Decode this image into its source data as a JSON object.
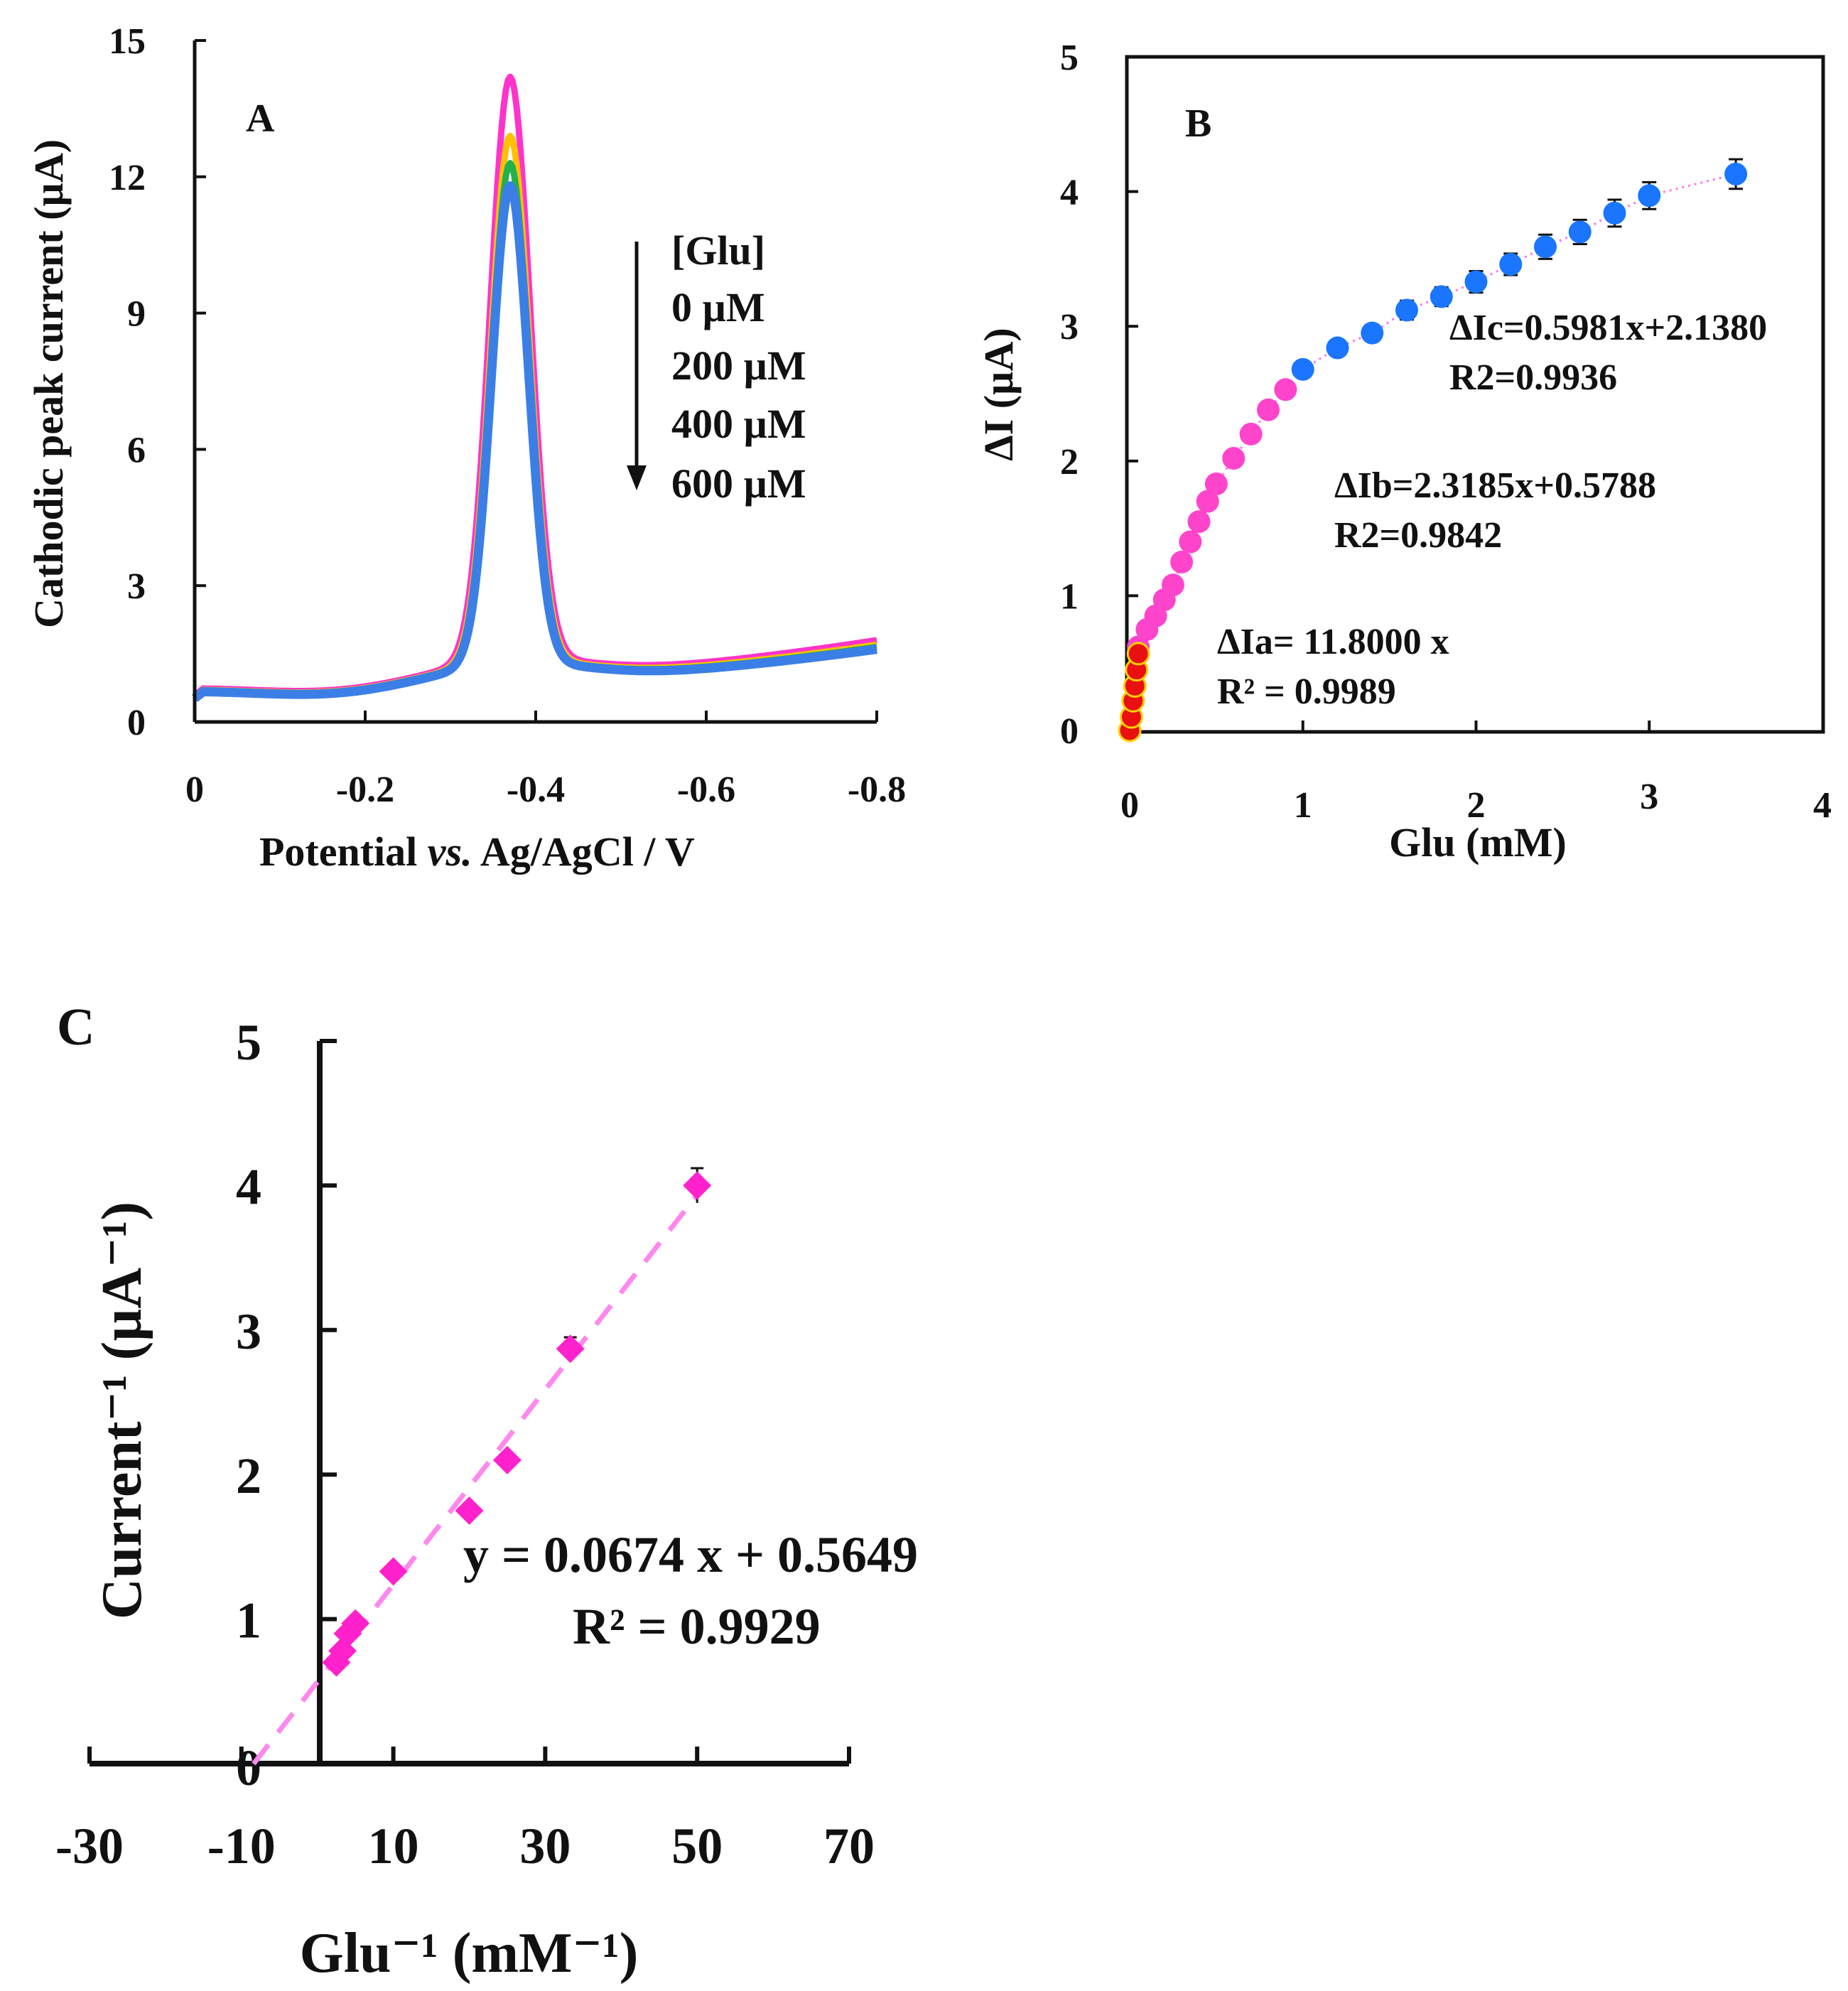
{
  "chart_data": [
    {
      "panel": "A",
      "type": "line",
      "title": "",
      "panel_label": "A",
      "xlabel": "Potential vs. Ag/AgCl / V",
      "xlabel_parts": [
        "Potential ",
        "vs.",
        " Ag/AgCl / V"
      ],
      "ylabel": "Cathodic peak current  (µA)",
      "xlim": [
        0,
        -0.8
      ],
      "ylim": [
        0,
        15
      ],
      "x_ticks": [
        0,
        -0.2,
        -0.4,
        -0.6,
        -0.8
      ],
      "x_tick_labels": [
        "0",
        "-0.2",
        "-0.4",
        "-0.6",
        "-0.8"
      ],
      "y_ticks": [
        0,
        3,
        6,
        9,
        12,
        15
      ],
      "y_tick_labels": [
        "0",
        "3",
        "6",
        "9",
        "12",
        "15"
      ],
      "legend": {
        "title": "[Glu]",
        "entries": [
          "0 µM",
          "200 µM",
          "400 µM",
          "600 µM"
        ],
        "placement": "right of peak, arrow pointing down"
      },
      "series": [
        {
          "name": "0 µM",
          "color": "#ff33cc",
          "peak": 14.2,
          "peak_x": -0.37,
          "width": 0.033,
          "tail_left": 0.75,
          "tail_right": 1.8
        },
        {
          "name": "200 µM",
          "color": "#ffc000",
          "peak": 12.9,
          "peak_x": -0.37,
          "width": 0.032,
          "tail_left": 0.72,
          "tail_right": 1.7
        },
        {
          "name": "400 µM",
          "color": "#22b14c",
          "peak": 12.3,
          "peak_x": -0.37,
          "width": 0.031,
          "tail_left": 0.7,
          "tail_right": 1.65
        },
        {
          "name": "600 µM",
          "color": "#3b7fe6",
          "peak": 11.8,
          "peak_x": -0.37,
          "width": 0.031,
          "tail_left": 0.68,
          "tail_right": 1.6
        }
      ]
    },
    {
      "panel": "B",
      "type": "scatter",
      "panel_label": "B",
      "xlabel": "Glu (mM)",
      "ylabel": "ΔI (µA)",
      "xlim": [
        0,
        4
      ],
      "ylim": [
        0,
        5
      ],
      "x_ticks": [
        0,
        1,
        2,
        3,
        4
      ],
      "x_tick_labels": [
        "0",
        "1",
        "2",
        "3",
        "4"
      ],
      "y_ticks": [
        0,
        1,
        2,
        3,
        4,
        5
      ],
      "y_tick_labels": [
        "0",
        "1",
        "2",
        "3",
        "4",
        "5"
      ],
      "series": [
        {
          "name": "a",
          "color": "#e81010",
          "edge": "#ffd000",
          "x": [
            0.0,
            0.01,
            0.02,
            0.03,
            0.04,
            0.05
          ],
          "y": [
            0.0,
            0.1,
            0.22,
            0.33,
            0.45,
            0.57
          ]
        },
        {
          "name": "b",
          "color": "#ff44cc",
          "x": [
            0.05,
            0.1,
            0.15,
            0.2,
            0.25,
            0.3,
            0.35,
            0.4,
            0.45,
            0.5,
            0.6,
            0.7,
            0.8,
            0.9
          ],
          "y": [
            0.62,
            0.75,
            0.85,
            0.97,
            1.08,
            1.25,
            1.4,
            1.55,
            1.7,
            1.83,
            2.02,
            2.2,
            2.38,
            2.53
          ]
        },
        {
          "name": "c",
          "color": "#1a75ff",
          "x": [
            1.0,
            1.2,
            1.4,
            1.6,
            1.8,
            2.0,
            2.2,
            2.4,
            2.6,
            2.8,
            3.0,
            3.5
          ],
          "y": [
            2.68,
            2.84,
            2.95,
            3.12,
            3.22,
            3.33,
            3.46,
            3.59,
            3.7,
            3.84,
            3.97,
            4.13
          ],
          "error": [
            0.05,
            0.05,
            0.06,
            0.07,
            0.07,
            0.08,
            0.08,
            0.09,
            0.09,
            0.1,
            0.1,
            0.11
          ]
        }
      ],
      "annotations": {
        "c_eq": "ΔIc=0.5981x+2.1380",
        "c_r2": "R2=0.9936",
        "b_eq": "ΔIb=2.3185x+0.5788",
        "b_r2": "R2=0.9842",
        "a_eq": "ΔIa= 11.8000 x",
        "a_r2": "R² = 0.9989"
      }
    },
    {
      "panel": "C",
      "type": "scatter",
      "panel_label": "C",
      "xlabel": "Glu⁻¹ (mM⁻¹)",
      "ylabel": "Current⁻¹ (µA⁻¹)",
      "xlim": [
        -30,
        70
      ],
      "ylim": [
        0,
        5
      ],
      "x_ticks": [
        -30,
        -10,
        10,
        30,
        50,
        70
      ],
      "x_tick_labels": [
        "-30",
        "-10",
        "10",
        "30",
        "50",
        "70"
      ],
      "y_ticks": [
        0,
        1,
        2,
        3,
        4,
        5
      ],
      "y_tick_labels": [
        "0",
        "1",
        "2",
        "3",
        "4",
        "5"
      ],
      "series": [
        {
          "name": "data",
          "color": "#ff22cc",
          "x": [
            2.5,
            3.3,
            4.0,
            5.0,
            10.0,
            20.0,
            25.0,
            33.3,
            50.0
          ],
          "y": [
            0.7,
            0.78,
            0.9,
            0.97,
            1.33,
            1.75,
            2.1,
            2.87,
            4.0
          ],
          "error": [
            0.03,
            0.03,
            0.03,
            0.03,
            0.04,
            0.04,
            0.05,
            0.08,
            0.12
          ]
        }
      ],
      "fit": {
        "slope": 0.0674,
        "intercept": 0.5649,
        "x_range": [
          -8.4,
          50
        ],
        "color": "#ff88ee"
      },
      "annotations": {
        "eq": "y = 0.0674 x + 0.5649",
        "r2": "R² = 0.9929"
      }
    }
  ]
}
